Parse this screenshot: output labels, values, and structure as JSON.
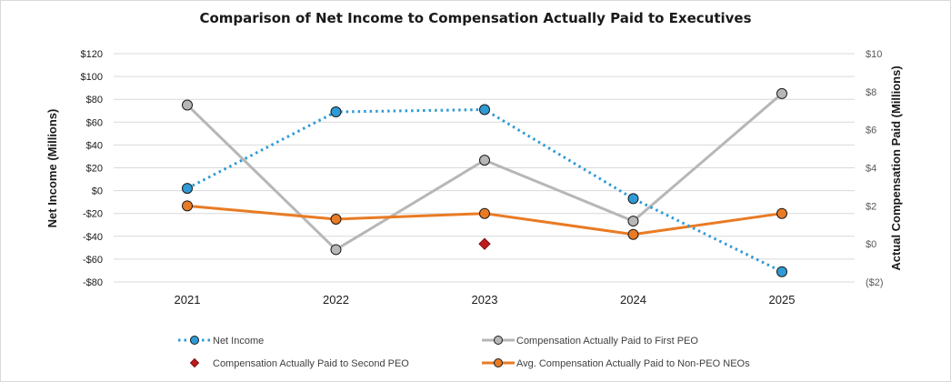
{
  "chart_data": {
    "type": "line",
    "title": "Comparison of Net Income to Compensation Actually Paid to Executives",
    "xlabel": "",
    "ylabel": "Net Income (Millions)",
    "y2label": "Actual Compensation Paid (Millions)",
    "categories": [
      "2021",
      "2022",
      "2023",
      "2024",
      "2025"
    ],
    "ylim": [
      -80,
      120
    ],
    "y_ticks": [
      120,
      100,
      80,
      60,
      40,
      20,
      0,
      -20,
      -40,
      -60,
      -80
    ],
    "y_tick_labels": [
      "$120",
      "$100",
      "$80",
      "$60",
      "$40",
      "$20",
      "$0",
      "-$20",
      "-$40",
      "-$60",
      "-$80"
    ],
    "y2lim": [
      -2,
      10
    ],
    "y2_ticks": [
      10,
      8,
      6,
      4,
      2,
      0,
      -2
    ],
    "y2_tick_labels": [
      "$10",
      "$8",
      "$6",
      "$4",
      "$2",
      "$0",
      "($2)"
    ],
    "grid": true,
    "legend_position": "bottom",
    "series": [
      {
        "name": "Net Income",
        "axis": "left",
        "style": "dotted-line-circle",
        "color": "#2e9bd6",
        "values": [
          2,
          69,
          71,
          -7,
          -71
        ]
      },
      {
        "name": "Compensation Actually Paid to First PEO",
        "axis": "right",
        "style": "solid-line-circle",
        "color": "#b7b7b7",
        "values": [
          7.3,
          -0.3,
          4.4,
          1.2,
          7.9
        ]
      },
      {
        "name": "Compensation Actually Paid to Second PEO",
        "axis": "right",
        "style": "diamond-marker",
        "color": "#c0181c",
        "values": [
          null,
          null,
          0.0,
          null,
          null
        ]
      },
      {
        "name": "Avg. Compensation Actually Paid to Non-PEO NEOs",
        "axis": "right",
        "style": "solid-line-circle",
        "color": "#e97b24",
        "values": [
          2.0,
          1.3,
          1.6,
          0.5,
          1.6
        ]
      }
    ]
  }
}
